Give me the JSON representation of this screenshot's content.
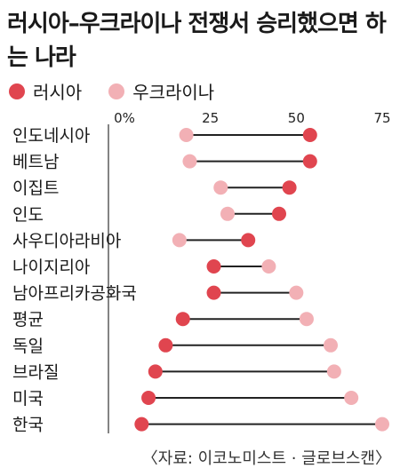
{
  "title": "러시아–우크라이나 전쟁서 승리했으면 하는 나라",
  "legend": {
    "russia": "러시아",
    "ukraine": "우크라이나"
  },
  "colors": {
    "russia": "#e0454f",
    "ukraine": "#f2b0b5",
    "line": "#222222"
  },
  "source": "〈자료: 이코노미스트 · 글로브스캔〉",
  "chart_data": {
    "type": "dumbbell",
    "title": "러시아–우크라이나 전쟁서 승리했으면 하는 나라",
    "x_ticks": [
      "0%",
      "25",
      "50",
      "75"
    ],
    "xlim": [
      0,
      75
    ],
    "grid": false,
    "legend_position": "top-left",
    "categories": [
      "인도네시아",
      "베트남",
      "이집트",
      "인도",
      "사우디아라비아",
      "나이지리아",
      "남아프리카공화국",
      "평균",
      "독일",
      "브라질",
      "미국",
      "한국"
    ],
    "series": [
      {
        "name": "러시아",
        "values": [
          54,
          54,
          48,
          45,
          36,
          26,
          26,
          17,
          12,
          9,
          7,
          5
        ]
      },
      {
        "name": "우크라이나",
        "values": [
          18,
          19,
          28,
          30,
          16,
          42,
          50,
          53,
          60,
          61,
          66,
          75
        ]
      }
    ]
  }
}
